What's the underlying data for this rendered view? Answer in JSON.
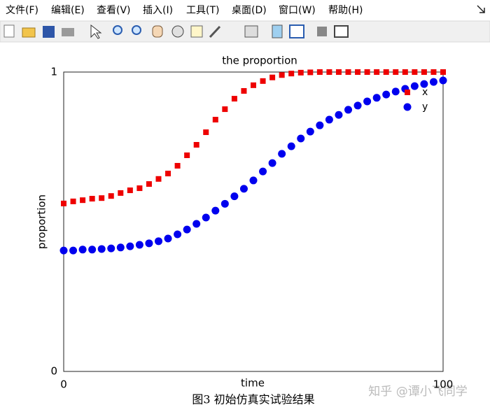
{
  "menu": [
    "文件(F)",
    "编辑(E)",
    "查看(V)",
    "插入(I)",
    "工具(T)",
    "桌面(D)",
    "窗口(W)",
    "帮助(H)"
  ],
  "chart_data": {
    "type": "scatter",
    "title": "the proportion",
    "xlabel": "time",
    "ylabel": "proportion",
    "x": [
      0,
      2.5,
      5,
      7.5,
      10,
      12.5,
      15,
      17.5,
      20,
      22.5,
      25,
      27.5,
      30,
      32.5,
      35,
      37.5,
      40,
      42.5,
      45,
      47.5,
      50,
      52.5,
      55,
      57.5,
      60,
      62.5,
      65,
      67.5,
      70,
      72.5,
      75,
      77.5,
      80,
      82.5,
      85,
      87.5,
      90,
      92.5,
      95,
      97.5,
      100
    ],
    "series": [
      {
        "name": "x",
        "color": "#ee0000",
        "marker": "square",
        "values": [
          0.561,
          0.568,
          0.572,
          0.577,
          0.579,
          0.586,
          0.596,
          0.605,
          0.612,
          0.626,
          0.643,
          0.661,
          0.687,
          0.722,
          0.757,
          0.799,
          0.841,
          0.876,
          0.911,
          0.937,
          0.956,
          0.97,
          0.982,
          0.99,
          0.995,
          0.998,
          0.999,
          1,
          1,
          1,
          1,
          1,
          1,
          1,
          1,
          1,
          1,
          1,
          1,
          1,
          1
        ]
      },
      {
        "name": "y",
        "color": "#0000ee",
        "marker": "circle",
        "values": [
          0.404,
          0.404,
          0.407,
          0.407,
          0.409,
          0.411,
          0.414,
          0.418,
          0.423,
          0.428,
          0.435,
          0.444,
          0.458,
          0.474,
          0.493,
          0.514,
          0.537,
          0.56,
          0.585,
          0.61,
          0.638,
          0.668,
          0.696,
          0.727,
          0.752,
          0.778,
          0.801,
          0.822,
          0.841,
          0.857,
          0.874,
          0.888,
          0.902,
          0.914,
          0.925,
          0.935,
          0.944,
          0.953,
          0.96,
          0.967,
          0.972
        ]
      }
    ],
    "xlim": [
      0,
      100
    ],
    "ylim": [
      0,
      1
    ],
    "xticks": [
      0,
      100
    ],
    "yticks": [
      0,
      1
    ],
    "legend": "upper right"
  },
  "caption": "图3 初始仿真实试验结果",
  "watermark": "知乎 @谭小飞同学"
}
